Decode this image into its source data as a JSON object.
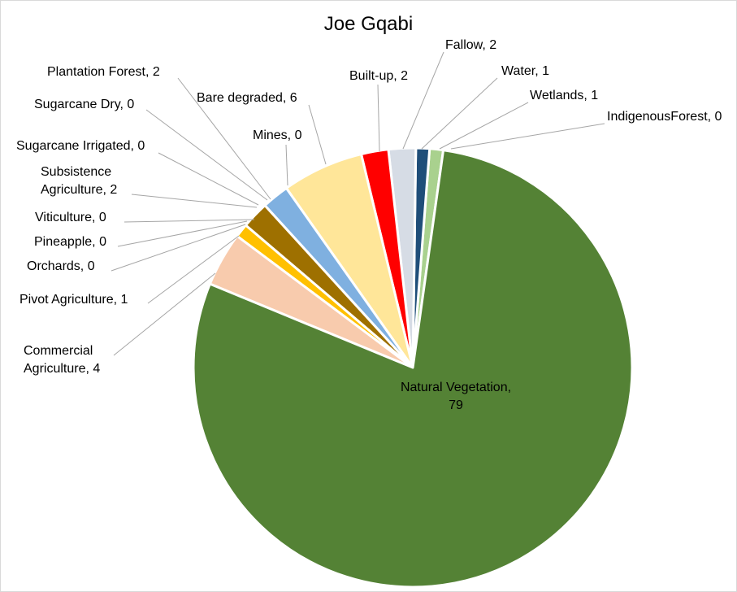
{
  "chart_data": {
    "type": "pie",
    "title": "Joe Gqabi",
    "slices": [
      {
        "label": "IndigenousForest",
        "value": 0,
        "color": "#a9d18e"
      },
      {
        "label": "Wetlands",
        "value": 1,
        "color": "#a9d18e"
      },
      {
        "label": "Water",
        "value": 1,
        "color": "#1f4e79"
      },
      {
        "label": "Fallow",
        "value": 2,
        "color": "#d6dce5"
      },
      {
        "label": "Built-up",
        "value": 2,
        "color": "#ff0000"
      },
      {
        "label": "Bare degraded",
        "value": 6,
        "color": "#ffe699"
      },
      {
        "label": "Mines",
        "value": 0,
        "color": "#8faadc"
      },
      {
        "label": "Plantation Forest",
        "value": 2,
        "color": "#7fb0e0"
      },
      {
        "label": "Sugarcane Dry",
        "value": 0,
        "color": "#9e7000"
      },
      {
        "label": "Sugarcane Irrigated",
        "value": 0,
        "color": "#9e7000"
      },
      {
        "label": "Subsistence Agriculture",
        "value": 2,
        "color": "#9e7000"
      },
      {
        "label": "Viticulture",
        "value": 0,
        "color": "#ffc000"
      },
      {
        "label": "Pineapple",
        "value": 0,
        "color": "#ffc000"
      },
      {
        "label": "Orchards",
        "value": 0,
        "color": "#ffc000"
      },
      {
        "label": "Pivot  Agriculture",
        "value": 1,
        "color": "#ffc000"
      },
      {
        "label": "Commercial Agriculture",
        "value": 4,
        "color": "#f8cbad"
      },
      {
        "label": "Natural Vegetation",
        "value": 79,
        "color": "#548235"
      }
    ],
    "data_labels": [
      {
        "lines": [
          "IndigenousForest, 0"
        ]
      },
      {
        "lines": [
          "Wetlands, 1"
        ]
      },
      {
        "lines": [
          "Water, 1"
        ]
      },
      {
        "lines": [
          "Fallow, 2"
        ]
      },
      {
        "lines": [
          "Built-up, 2"
        ]
      },
      {
        "lines": [
          "Bare degraded, 6"
        ]
      },
      {
        "lines": [
          "Mines, 0"
        ]
      },
      {
        "lines": [
          "Plantation Forest, 2"
        ]
      },
      {
        "lines": [
          "Sugarcane Dry, 0"
        ]
      },
      {
        "lines": [
          "Sugarcane Irrigated, 0"
        ]
      },
      {
        "lines": [
          "Subsistence",
          "Agriculture, 2"
        ]
      },
      {
        "lines": [
          "Viticulture, 0"
        ]
      },
      {
        "lines": [
          "Pineapple, 0"
        ]
      },
      {
        "lines": [
          "Orchards, 0"
        ]
      },
      {
        "lines": [
          "Pivot  Agriculture, 1"
        ]
      },
      {
        "lines": [
          "Commercial",
          "Agriculture, 4"
        ]
      },
      {
        "lines": [
          "Natural Vegetation,",
          "79"
        ]
      }
    ],
    "legend": "none"
  }
}
